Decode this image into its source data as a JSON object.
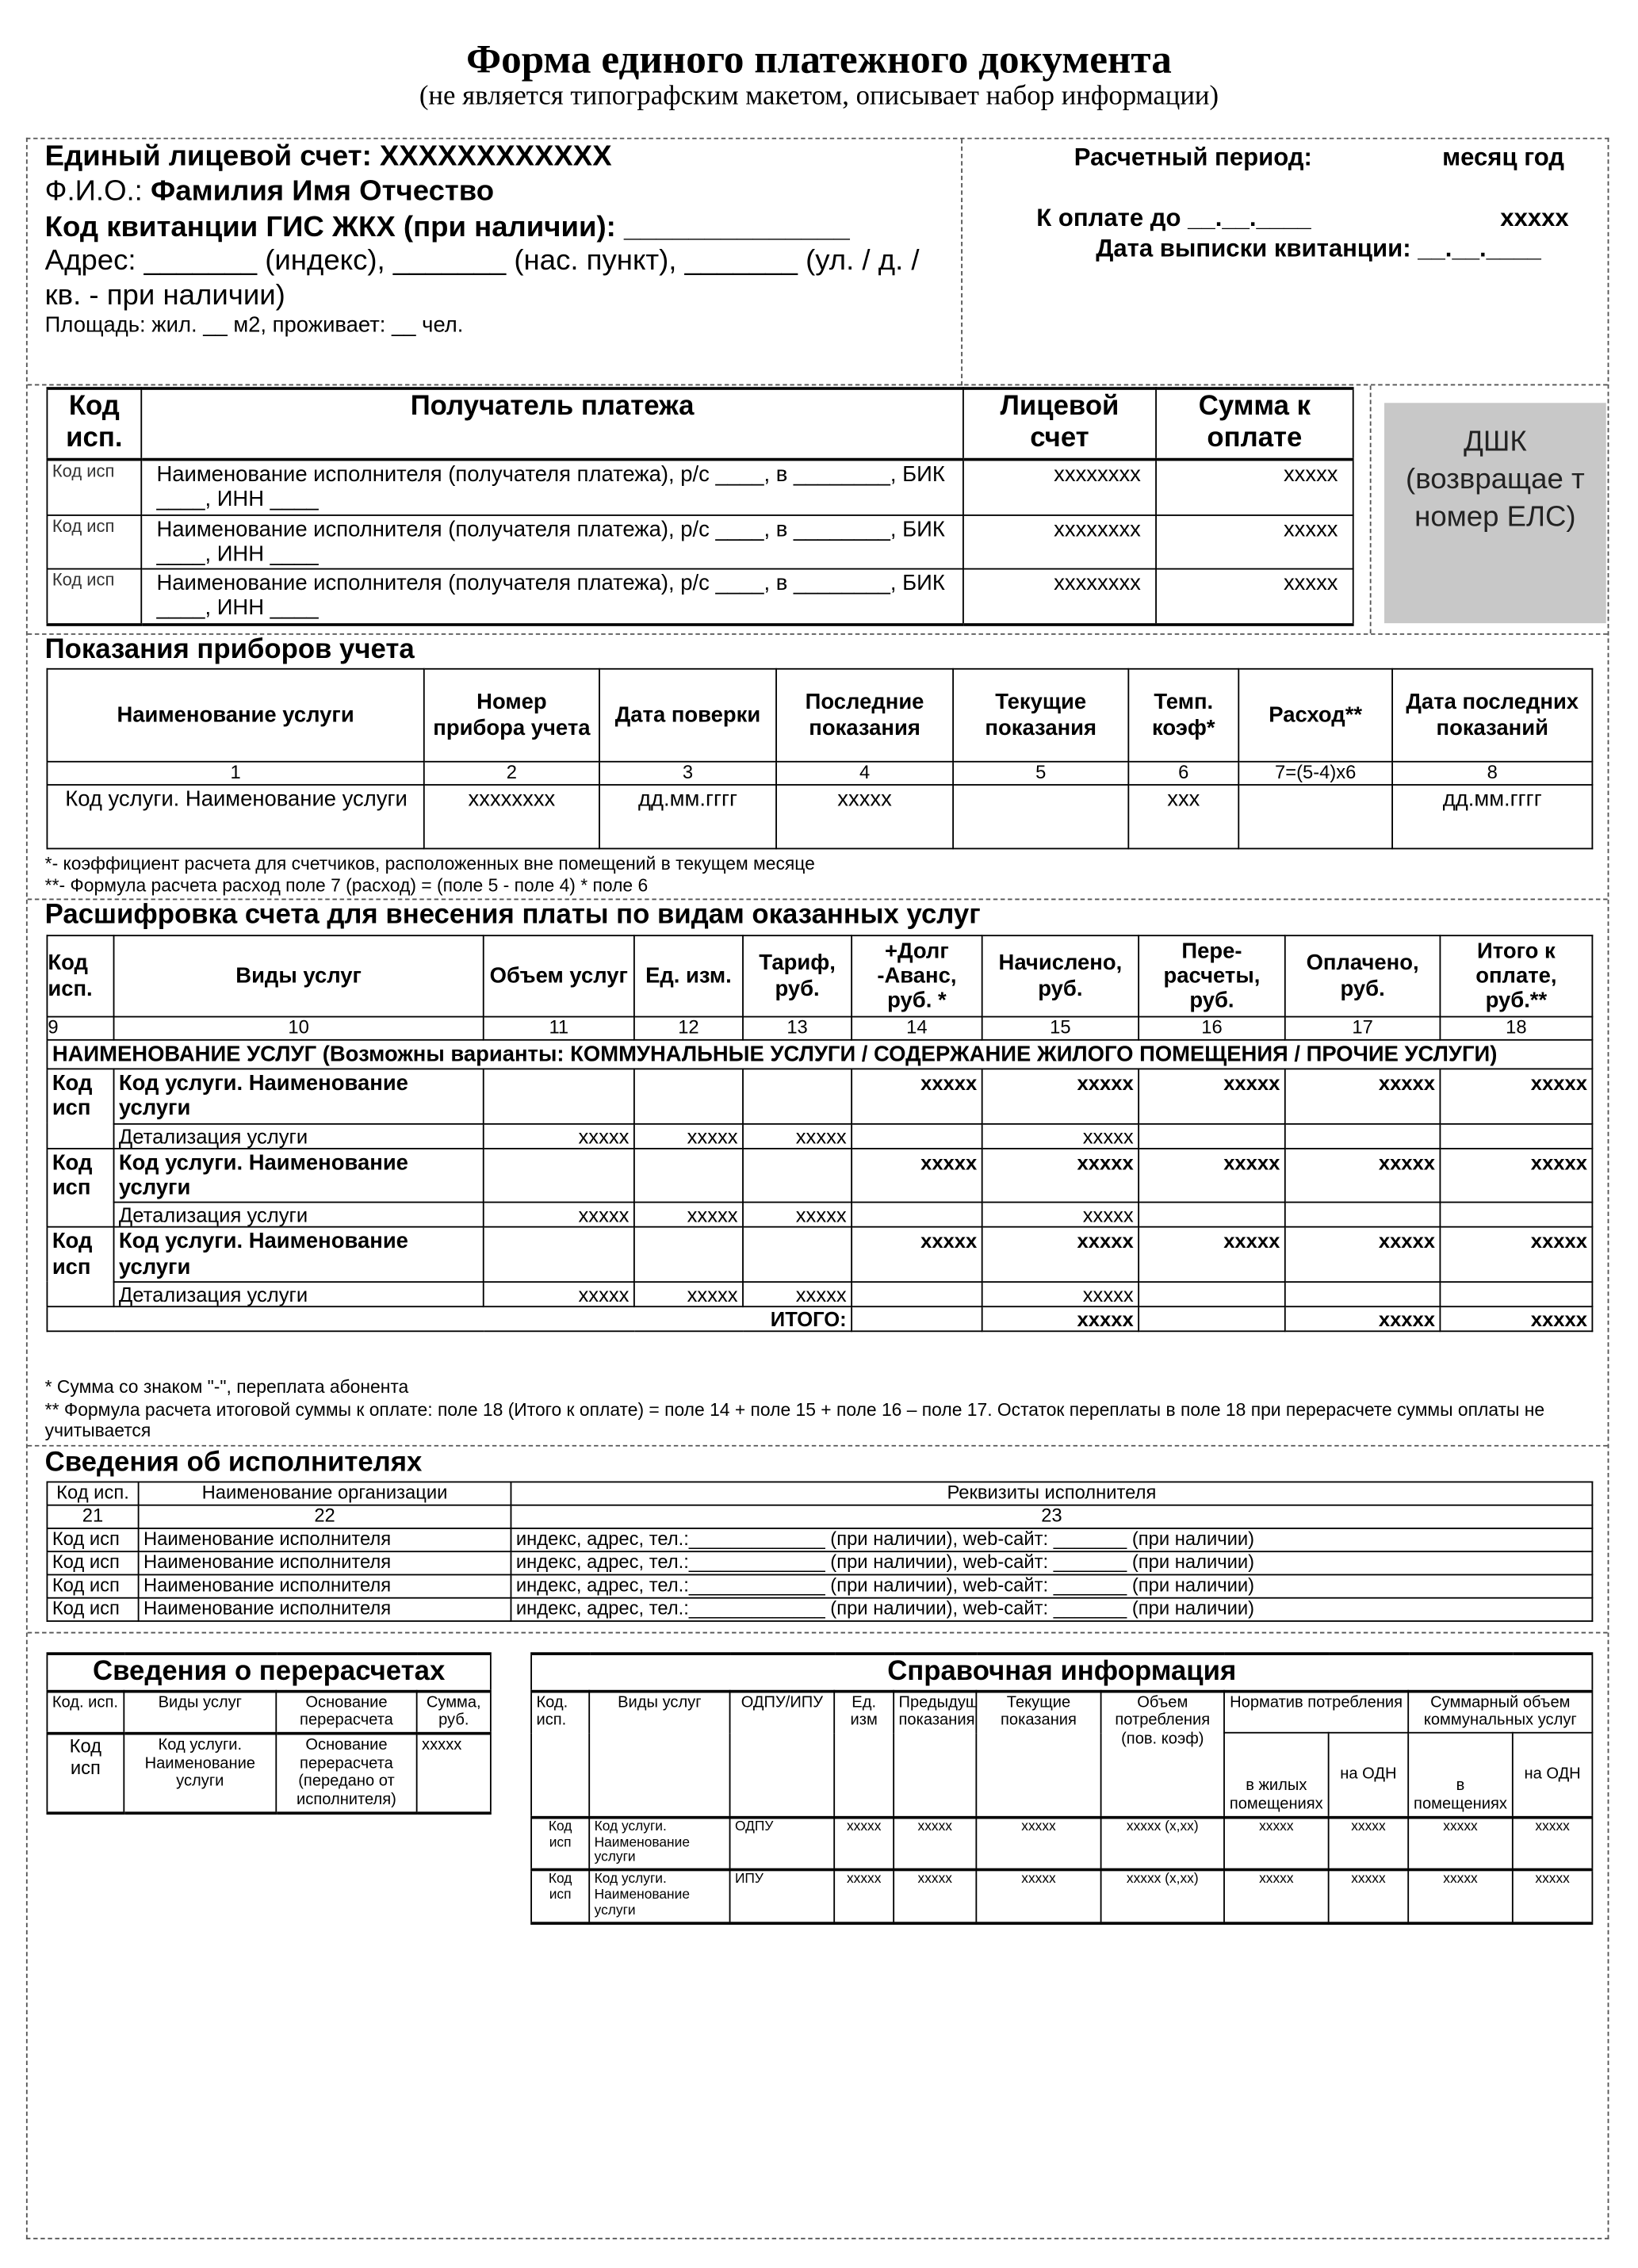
{
  "header": {
    "title": "Форма единого платежного документа",
    "subtitle": "(не является типографским макетом, описывает набор информации)"
  },
  "account": {
    "els_label": "Единый лицевой счет: XXXXXXXXXXXX",
    "fio_label": "Ф.И.О.:",
    "fio_value": "Фамилия Имя Отчество",
    "gis_code": "Код квитанции ГИС ЖКХ (при наличии): ______________",
    "address_1": "Адрес: _______ (индекс), _______ (нас. пункт), _______ (ул. / д. /",
    "address_2": "кв.  - при наличии)",
    "area": "Площадь: жил. __ м2, проживает: __ чел.",
    "period_label": "Расчетный период:",
    "period_value": "месяц год",
    "due_label": "К оплате до __.__.____",
    "due_value": "xxxxx",
    "issue_date": "Дата выписки квитанции: __.__.____"
  },
  "payees": {
    "headers": [
      "Код исп.",
      "Получатель платежа",
      "Лицевой счет",
      "Сумма к оплате"
    ],
    "rows": [
      [
        "Код исп",
        "Наименование исполнителя (получателя платежа), р/с ____, в ________, БИК ____, ИНН ____",
        "xxxxxxxx",
        "xxxxx"
      ],
      [
        "Код исп",
        "Наименование исполнителя (получателя платежа), р/с ____, в ________, БИК ____, ИНН ____",
        "xxxxxxxx",
        "xxxxx"
      ],
      [
        "Код исп",
        "Наименование исполнителя (получателя платежа), р/с ____, в ________, БИК ____, ИНН ____",
        "xxxxxxxx",
        "xxxxx"
      ]
    ],
    "dshk": "ДШК (возвращае т номер ЕЛС)"
  },
  "meters": {
    "title": "Показания приборов учета",
    "headers": [
      "Наименование услуги",
      "Номер прибора учета",
      "Дата поверки",
      "Последние показания",
      "Текущие показания",
      "Темп. коэф*",
      "Расход**",
      "Дата последних показаний"
    ],
    "numbers": [
      "1",
      "2",
      "3",
      "4",
      "5",
      "6",
      "7=(5-4)x6",
      "8"
    ],
    "rows": [
      [
        "Код услуги. Наименование услуги",
        "xxxxxxxx",
        "дд.мм.гггг",
        "xxxxx",
        "",
        "xxx",
        "",
        "дд.мм.гггг"
      ]
    ],
    "notes": [
      "*- коэффициент расчета для счетчиков, расположенных вне помещений в текущем месяце",
      "**- Формула расчета расход поле 7 (расход) = (поле 5 - поле 4) * поле 6"
    ]
  },
  "breakdown": {
    "title": "Расшифровка счета для внесения платы по видам оказанных услуг",
    "headers": [
      "Код исп.",
      "Виды услуг",
      "Объем услуг",
      "Ед. изм.",
      "Тариф, руб.",
      "+Долг -Аванс, руб. *",
      "Начислено, руб.",
      "Пере-расчеты, руб.",
      "Оплачено, руб.",
      "Итого к оплате, руб.**"
    ],
    "numbers": [
      "9",
      "10",
      "11",
      "12",
      "13",
      "14",
      "15",
      "16",
      "17",
      "18"
    ],
    "section": "НАИМЕНОВАНИЕ УСЛУГ (Возможны варианты: КОММУНАЛЬНЫЕ УСЛУГИ / СОДЕРЖАНИЕ ЖИЛОГО ПОМЕЩЕНИЯ / ПРОЧИЕ УСЛУГИ)",
    "services": [
      {
        "main": [
          "Код исп",
          "Код услуги. Наименование услуги",
          "",
          "",
          "",
          "xxxxx",
          "xxxxx",
          "xxxxx",
          "xxxxx",
          "xxxxx"
        ],
        "detail": [
          "Детализация услуги",
          "xxxxx",
          "xxxxx",
          "xxxxx",
          "",
          "xxxxx",
          "",
          "",
          ""
        ]
      },
      {
        "main": [
          "Код исп",
          "Код услуги. Наименование услуги",
          "",
          "",
          "",
          "xxxxx",
          "xxxxx",
          "xxxxx",
          "xxxxx",
          "xxxxx"
        ],
        "detail": [
          "Детализация услуги",
          "xxxxx",
          "xxxxx",
          "xxxxx",
          "",
          "xxxxx",
          "",
          "",
          ""
        ]
      },
      {
        "main": [
          "Код исп",
          "Код услуги. Наименование услуги",
          "",
          "",
          "",
          "xxxxx",
          "xxxxx",
          "xxxxx",
          "xxxxx",
          "xxxxx"
        ],
        "detail": [
          "Детализация услуги",
          "xxxxx",
          "xxxxx",
          "xxxxx",
          "",
          "xxxxx",
          "",
          "",
          ""
        ]
      }
    ],
    "total": [
      "ИТОГО:",
      "",
      "xxxxx",
      "",
      "xxxxx",
      "xxxxx"
    ],
    "notes": [
      "* Сумма со знаком \"-\", переплата абонента",
      "** Формула расчета итоговой суммы к оплате: поле 18 (Итого к оплате) = поле 14 + поле 15 + поле 16 – поле 17. Остаток переплаты в поле 18 при перерасчете суммы оплаты не учитывается"
    ]
  },
  "executors": {
    "title": "Сведения об исполнителях",
    "headers": [
      "Код исп.",
      "Наименование организации",
      "Реквизиты исполнителя"
    ],
    "numbers": [
      "21",
      "22",
      "23"
    ],
    "rows": [
      [
        "Код исп",
        "Наименование исполнителя",
        "индекс, адрес, тел.:_____________ (при наличии), web-сайт: _______ (при наличии)"
      ],
      [
        "Код исп",
        "Наименование исполнителя",
        "индекс, адрес, тел.:_____________ (при наличии), web-сайт: _______ (при наличии)"
      ],
      [
        "Код исп",
        "Наименование исполнителя",
        "индекс, адрес, тел.:_____________ (при наличии), web-сайт: _______ (при наличии)"
      ],
      [
        "Код исп",
        "Наименование исполнителя",
        "индекс, адрес, тел.:_____________ (при наличии), web-сайт: _______ (при наличии)"
      ]
    ]
  },
  "recalc": {
    "title": "Сведения о перерасчетах",
    "headers": [
      "Код. исп.",
      "Виды услуг",
      "Основание перерасчета",
      "Сумма, руб."
    ],
    "rows": [
      [
        "Код исп",
        "Код услуги. Наименование услуги",
        "Основание перерасчета (передано от исполнителя)",
        "xxxxx"
      ]
    ]
  },
  "reference": {
    "title": "Справочная информация",
    "headers": [
      "Код. исп.",
      "Виды услуг",
      "ОДПУ/ИПУ",
      "Ед. изм",
      "Предыдущие показания",
      "Текущие показания",
      "Объем потребления (пов. коэф)",
      "Норматив потребления",
      "Суммарный объем коммунальных услуг"
    ],
    "subheaders": [
      "в жилых помещениях",
      "на ОДН",
      "в помещениях",
      "на ОДН"
    ],
    "rows": [
      [
        "Код исп",
        "Код услуги. Наименование услуги",
        "ОДПУ",
        "xxxxx",
        "xxxxx",
        "xxxxx",
        "xxxxx (x,xx)",
        "xxxxx",
        "xxxxx",
        "xxxxx",
        "xxxxx"
      ],
      [
        "Код исп",
        "Код услуги. Наименование услуги",
        "ИПУ",
        "xxxxx",
        "xxxxx",
        "xxxxx",
        "xxxxx (x,xx)",
        "xxxxx",
        "xxxxx",
        "xxxxx",
        "xxxxx"
      ]
    ]
  }
}
